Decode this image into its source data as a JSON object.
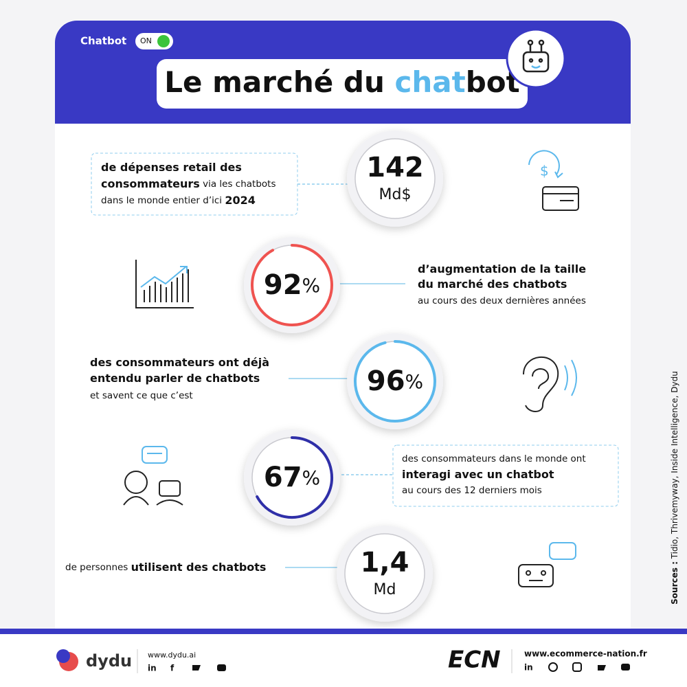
{
  "header": {
    "toggle_label": "Chatbot",
    "toggle_state": "ON",
    "title_parts": [
      {
        "text": "Le marché du "
      },
      {
        "text": "chat",
        "highlight": true
      },
      {
        "text": "bot"
      }
    ]
  },
  "stats": [
    {
      "value": "142",
      "unit": "Md$",
      "lines": [
        [
          {
            "text": "de dépenses retail des",
            "bold": true
          }
        ],
        [
          {
            "text": "consommateurs",
            "bold": true
          },
          {
            "text": " via les chatbots"
          }
        ],
        [
          {
            "text": "dans le monde entier d’ici "
          },
          {
            "text": "2024",
            "bold": true
          }
        ]
      ]
    },
    {
      "value": 92,
      "unit": "%",
      "color": "#ef5350",
      "lines": [
        [
          {
            "text": "d’augmentation de la taille",
            "bold": true
          }
        ],
        [
          {
            "text": "du marché des chatbots",
            "bold": true
          }
        ],
        [
          {
            "text": "au cours des deux dernières années"
          }
        ]
      ]
    },
    {
      "value": 96,
      "unit": "%",
      "color": "#5bb8ec",
      "lines": [
        [
          {
            "text": "des consommateurs ont déjà",
            "bold": true
          }
        ],
        [
          {
            "text": "entendu parler de chatbots",
            "bold": true
          }
        ],
        [
          {
            "text": "et savent ce que c’est"
          }
        ]
      ]
    },
    {
      "value": 67,
      "unit": "%",
      "color": "#2f2fa8",
      "lines": [
        [
          {
            "text": "des consommateurs dans le monde ont"
          }
        ],
        [
          {
            "text": "interagi avec un chatbot",
            "bold": true
          }
        ],
        [
          {
            "text": "au cours des 12 derniers mois"
          }
        ]
      ]
    },
    {
      "value": "1,4",
      "unit": "Md",
      "lines": [
        [
          {
            "text": "de personnes "
          },
          {
            "text": "utilisent des chatbots",
            "bold": true
          }
        ]
      ]
    }
  ],
  "sources": {
    "label": "Sources :",
    "text": " Tidio, Thrivemyway, Inside Intelligence, Dydu"
  },
  "footer": {
    "dydu": {
      "name": "dydu",
      "url": "www.dydu.ai",
      "social": [
        "in",
        "f"
      ]
    },
    "ecn": {
      "name": "ECN",
      "url": "www.ecommerce-nation.fr",
      "social": [
        "in"
      ]
    }
  }
}
